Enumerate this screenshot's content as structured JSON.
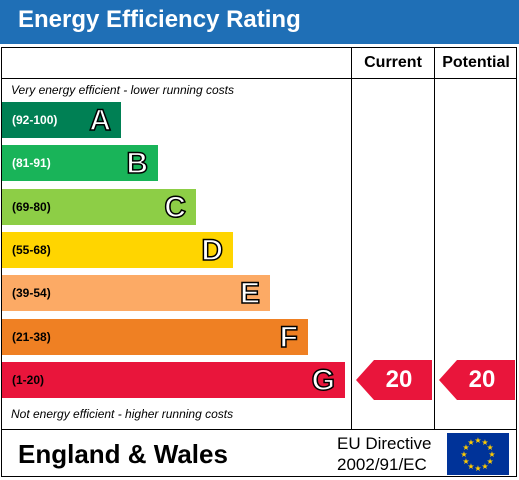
{
  "header": {
    "title": "Energy Efficiency Rating",
    "color": "#1f6fb6"
  },
  "columns": {
    "current": "Current",
    "potential": "Potential"
  },
  "captions": {
    "top": "Very energy efficient - lower running costs",
    "bottom": "Not energy efficient - higher running costs"
  },
  "chart_data": {
    "type": "table",
    "bands": [
      {
        "range": "(92-100)",
        "letter": "A",
        "color": "#008054",
        "range_color": "#ffffff"
      },
      {
        "range": "(81-91)",
        "letter": "B",
        "color": "#19b459",
        "range_color": "#ffffff"
      },
      {
        "range": "(69-80)",
        "letter": "C",
        "color": "#8dce46",
        "range_color": "#000000"
      },
      {
        "range": "(55-68)",
        "letter": "D",
        "color": "#ffd500",
        "range_color": "#000000"
      },
      {
        "range": "(39-54)",
        "letter": "E",
        "color": "#fcaa65",
        "range_color": "#000000"
      },
      {
        "range": "(21-38)",
        "letter": "F",
        "color": "#ef8023",
        "range_color": "#000000"
      },
      {
        "range": "(1-20)",
        "letter": "G",
        "color": "#e9153b",
        "range_color": "#000000"
      }
    ],
    "current": {
      "value": 20,
      "label": "20",
      "band": "G"
    },
    "potential": {
      "value": 20,
      "label": "20",
      "band": "G"
    },
    "arrow_color": "#e9153b"
  },
  "footer": {
    "region": "England & Wales",
    "directive_line1": "EU Directive",
    "directive_line2": "2002/91/EC",
    "flag_icon": "eu-flag-icon"
  }
}
